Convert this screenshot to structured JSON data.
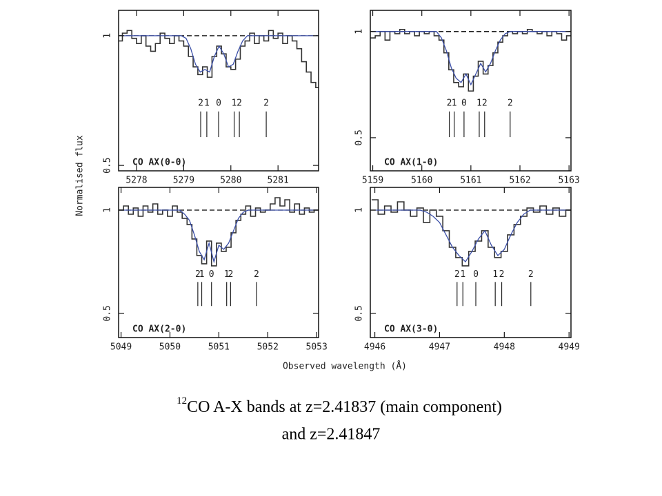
{
  "figure": {
    "ylabel": "Normalised flux",
    "xlabel": "Observed wavelength (Å)"
  },
  "caption": {
    "superscript": "12",
    "line1": "CO A-X bands at z=2.41837 (main component)",
    "line2": "and z=2.41847"
  },
  "chart_data": [
    {
      "type": "line",
      "title": "CO AX(0-0)",
      "xlim": [
        5277.62,
        5281.86
      ],
      "ylim": [
        0.479,
        1.098
      ],
      "xticks": [
        5278,
        5279,
        5280,
        5281
      ],
      "yticks": [
        0.5,
        1
      ],
      "continuum": 1,
      "x": [
        5277.65,
        5277.75,
        5277.85,
        5277.95,
        5278.05,
        5278.15,
        5278.25,
        5278.35,
        5278.45,
        5278.55,
        5278.65,
        5278.75,
        5278.85,
        5278.95,
        5279.05,
        5279.15,
        5279.25,
        5279.35,
        5279.45,
        5279.55,
        5279.65,
        5279.75,
        5279.85,
        5279.95,
        5280.05,
        5280.15,
        5280.25,
        5280.35,
        5280.45,
        5280.55,
        5280.65,
        5280.75,
        5280.85,
        5280.95,
        5281.05,
        5281.15,
        5281.25,
        5281.35,
        5281.45,
        5281.55,
        5281.65,
        5281.75,
        5281.85
      ],
      "series": [
        {
          "color": "#333333",
          "drawstyle": "steps-mid",
          "values": [
            0.98,
            1.01,
            1.02,
            0.99,
            0.97,
            1.0,
            0.96,
            0.94,
            0.97,
            1.01,
            0.99,
            0.97,
            1.0,
            0.98,
            0.96,
            0.92,
            0.88,
            0.85,
            0.88,
            0.84,
            0.92,
            0.96,
            0.93,
            0.88,
            0.87,
            0.91,
            0.96,
            0.98,
            1.01,
            0.97,
            1.0,
            0.98,
            1.02,
            0.99,
            1.01,
            0.97,
            1.0,
            0.98,
            0.95,
            0.9,
            0.86,
            0.82,
            0.8
          ]
        },
        {
          "color": "#3b4fa8",
          "drawstyle": "default",
          "values": [
            1,
            1,
            1,
            1,
            1,
            1,
            1,
            1,
            1,
            1,
            1,
            1,
            1,
            1,
            0.99,
            0.95,
            0.89,
            0.86,
            0.87,
            0.86,
            0.92,
            0.96,
            0.93,
            0.88,
            0.89,
            0.94,
            0.98,
            1,
            1,
            1,
            1,
            1,
            1,
            1,
            1,
            1,
            1,
            1,
            1,
            1,
            1,
            1,
            1
          ]
        }
      ],
      "transitions": {
        "x": [
          5279.36,
          5279.49,
          5279.74,
          5280.07,
          5280.18,
          5280.75
        ],
        "labels": [
          "2",
          "1",
          "0",
          "1",
          "2",
          "2"
        ]
      }
    },
    {
      "type": "line",
      "title": "CO AX(1-0)",
      "xlim": [
        5158.95,
        5163.04
      ],
      "ylim": [
        0.344,
        1.1
      ],
      "xticks": [
        5159,
        5160,
        5161,
        5162,
        5163
      ],
      "yticks": [
        0.5,
        1
      ],
      "continuum": 1,
      "x": [
        5159.0,
        5159.1,
        5159.2,
        5159.3,
        5159.4,
        5159.5,
        5159.6,
        5159.7,
        5159.8,
        5159.9,
        5160.0,
        5160.1,
        5160.2,
        5160.3,
        5160.4,
        5160.5,
        5160.6,
        5160.7,
        5160.8,
        5160.9,
        5161.0,
        5161.1,
        5161.2,
        5161.3,
        5161.4,
        5161.5,
        5161.6,
        5161.7,
        5161.8,
        5161.9,
        5162.0,
        5162.1,
        5162.2,
        5162.3,
        5162.4,
        5162.5,
        5162.6,
        5162.7,
        5162.8,
        5162.9,
        5163.0
      ],
      "series": [
        {
          "color": "#333333",
          "drawstyle": "steps-mid",
          "values": [
            0.97,
            0.98,
            1.0,
            0.96,
            1.0,
            0.99,
            1.01,
            0.99,
            1.0,
            0.98,
            1.0,
            0.99,
            1.0,
            0.98,
            0.96,
            0.9,
            0.82,
            0.76,
            0.74,
            0.8,
            0.72,
            0.79,
            0.86,
            0.8,
            0.84,
            0.9,
            0.95,
            0.98,
            1.0,
            0.99,
            1.0,
            0.99,
            1.01,
            1.0,
            0.99,
            1.0,
            0.98,
            1.0,
            0.99,
            0.96,
            0.98
          ]
        },
        {
          "color": "#3b4fa8",
          "drawstyle": "default",
          "values": [
            1,
            1,
            1,
            1,
            1,
            1,
            1,
            1,
            1,
            1,
            1,
            1,
            1,
            1,
            0.97,
            0.91,
            0.83,
            0.78,
            0.76,
            0.8,
            0.75,
            0.8,
            0.85,
            0.81,
            0.85,
            0.91,
            0.96,
            0.99,
            1,
            1,
            1,
            1,
            1,
            1,
            1,
            1,
            1,
            1,
            1,
            1,
            1
          ]
        }
      ],
      "transitions": {
        "x": [
          5160.56,
          5160.66,
          5160.86,
          5161.17,
          5161.28,
          5161.8
        ],
        "labels": [
          "2",
          "1",
          "0",
          "1",
          "2",
          "2"
        ]
      }
    },
    {
      "type": "line",
      "title": "CO AX(2-0)",
      "xlim": [
        5048.95,
        5053.04
      ],
      "ylim": [
        0.383,
        1.11
      ],
      "xticks": [
        5049,
        5050,
        5051,
        5052,
        5053
      ],
      "yticks": [
        0.5,
        1
      ],
      "continuum": 1,
      "x": [
        5049.0,
        5049.1,
        5049.2,
        5049.3,
        5049.4,
        5049.5,
        5049.6,
        5049.7,
        5049.8,
        5049.9,
        5050.0,
        5050.1,
        5050.2,
        5050.3,
        5050.4,
        5050.5,
        5050.6,
        5050.7,
        5050.8,
        5050.9,
        5051.0,
        5051.1,
        5051.2,
        5051.3,
        5051.4,
        5051.5,
        5051.6,
        5051.7,
        5051.8,
        5051.9,
        5052.0,
        5052.1,
        5052.2,
        5052.3,
        5052.4,
        5052.5,
        5052.6,
        5052.7,
        5052.8,
        5052.9,
        5053.0
      ],
      "series": [
        {
          "color": "#333333",
          "drawstyle": "steps-mid",
          "values": [
            1.0,
            1.02,
            0.98,
            1.01,
            0.97,
            1.02,
            0.99,
            1.03,
            0.98,
            1.0,
            0.97,
            1.02,
            0.99,
            0.96,
            0.93,
            0.86,
            0.78,
            0.74,
            0.85,
            0.73,
            0.84,
            0.8,
            0.82,
            0.89,
            0.95,
            0.98,
            1.02,
            0.97,
            1.01,
            0.99,
            1.0,
            1.03,
            1.06,
            1.02,
            1.05,
            0.99,
            1.03,
            0.98,
            1.01,
            0.99,
            1.0
          ]
        },
        {
          "color": "#3b4fa8",
          "drawstyle": "default",
          "values": [
            1,
            1,
            1,
            1,
            1,
            1,
            1,
            1,
            1,
            1,
            1,
            1,
            1,
            0.98,
            0.95,
            0.88,
            0.8,
            0.76,
            0.84,
            0.75,
            0.83,
            0.81,
            0.84,
            0.9,
            0.96,
            0.99,
            1,
            1,
            1,
            1,
            1,
            1,
            1,
            1,
            1,
            1,
            1,
            1,
            1,
            1,
            1
          ]
        }
      ],
      "transitions": {
        "x": [
          5050.57,
          5050.65,
          5050.85,
          5051.16,
          5051.24,
          5051.77
        ],
        "labels": [
          "2",
          "1",
          "0",
          "1",
          "2",
          "2"
        ]
      }
    },
    {
      "type": "line",
      "title": "CO AX(3-0)",
      "xlim": [
        4945.93,
        4949.03
      ],
      "ylim": [
        0.383,
        1.11
      ],
      "xticks": [
        4946,
        4947,
        4948,
        4949
      ],
      "yticks": [
        0.5,
        1
      ],
      "continuum": 1,
      "x": [
        4946.0,
        4946.1,
        4946.2,
        4946.3,
        4946.4,
        4946.5,
        4946.6,
        4946.7,
        4946.8,
        4946.9,
        4947.0,
        4947.1,
        4947.2,
        4947.3,
        4947.4,
        4947.5,
        4947.6,
        4947.7,
        4947.8,
        4947.9,
        4948.0,
        4948.1,
        4948.2,
        4948.3,
        4948.4,
        4948.5,
        4948.6,
        4948.7,
        4948.8,
        4948.9,
        4949.0
      ],
      "series": [
        {
          "color": "#333333",
          "drawstyle": "steps-mid",
          "values": [
            1.05,
            0.98,
            1.02,
            0.99,
            1.04,
            1.0,
            0.97,
            1.01,
            0.94,
            1.0,
            0.97,
            0.9,
            0.82,
            0.77,
            0.73,
            0.8,
            0.85,
            0.9,
            0.82,
            0.77,
            0.8,
            0.88,
            0.93,
            0.97,
            1.01,
            0.99,
            1.02,
            0.98,
            1.01,
            0.97,
            1.0
          ]
        },
        {
          "color": "#3b4fa8",
          "drawstyle": "default",
          "values": [
            1,
            1,
            1,
            1,
            1,
            1,
            1,
            1,
            0.99,
            0.97,
            0.94,
            0.88,
            0.82,
            0.78,
            0.75,
            0.8,
            0.86,
            0.9,
            0.83,
            0.78,
            0.81,
            0.88,
            0.94,
            0.98,
            1,
            1,
            1,
            1,
            1,
            1,
            1
          ]
        }
      ],
      "transitions": {
        "x": [
          4947.27,
          4947.36,
          4947.56,
          4947.86,
          4947.96,
          4948.41
        ],
        "labels": [
          "2",
          "1",
          "0",
          "1",
          "2",
          "2"
        ]
      }
    }
  ]
}
